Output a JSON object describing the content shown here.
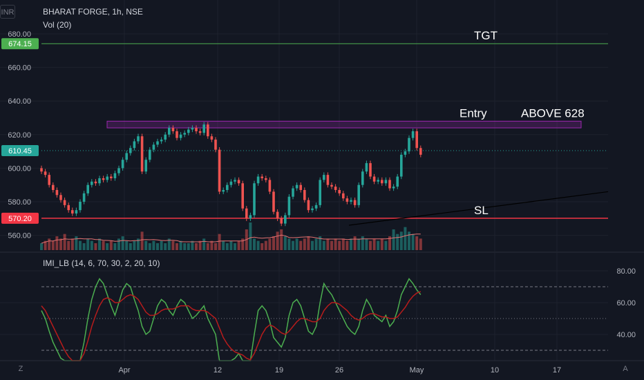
{
  "header": {
    "symbol_line": "BHARAT FORGE, 1h, NSE",
    "volume_label": "Vol (20)",
    "currency": "INR"
  },
  "indicator": {
    "label": "IMI_LB (14, 6, 70, 30, 2, 20, 10)"
  },
  "corners": {
    "left": "Z",
    "right": "A"
  },
  "colors": {
    "background": "#131722",
    "up": "#26a69a",
    "down": "#ef5350",
    "target_line": "#4caf50",
    "stop_line": "#f23645",
    "entry_zone": "#9c27b0",
    "trend_line": "#000000",
    "imi_fast": "#4caf50",
    "imi_slow": "#b71c1c"
  },
  "chart_data": [
    {
      "type": "line",
      "title": "BHARAT FORGE, 1h, NSE",
      "ylim": [
        551,
        684
      ],
      "y_ticks": [
        560,
        580,
        600,
        620,
        640,
        660,
        680
      ],
      "y_tick_labels": [
        "560.00",
        "580.00",
        "600.00",
        "620.00",
        "640.00",
        "660.00",
        "680.00"
      ],
      "x_tick_labels": [
        "Apr",
        "12",
        "19",
        "26",
        "May",
        "10",
        "17"
      ],
      "last_price": 610.45,
      "last_price_label": "610.45",
      "target_price": 674.15,
      "target_price_label": "674.15",
      "stop_price": 570.2,
      "stop_price_label": "570.20",
      "entry_zone": [
        624,
        628
      ],
      "annotations": [
        {
          "text": "TGT",
          "price": 674.15
        },
        {
          "text": "Entry",
          "price": 628
        },
        {
          "text": "ABOVE 628",
          "price": 628
        },
        {
          "text": "SL",
          "price": 570.2
        }
      ],
      "price_path": [
        598,
        596,
        590,
        587,
        584,
        581,
        578,
        575,
        573,
        575,
        580,
        585,
        590,
        592,
        591,
        594,
        593,
        595,
        594,
        597,
        600,
        605,
        609,
        612,
        616,
        619,
        598,
        605,
        611,
        614,
        616,
        617,
        620,
        624,
        622,
        618,
        620,
        621,
        623,
        624,
        622,
        621,
        626,
        619,
        617,
        611,
        586,
        587,
        590,
        592,
        593,
        591,
        576,
        570,
        572,
        591,
        595,
        594,
        593,
        586,
        574,
        570,
        567,
        572,
        583,
        588,
        590,
        587,
        581,
        575,
        576,
        578,
        593,
        596,
        590,
        589,
        587,
        585,
        582,
        580,
        581,
        578,
        590,
        598,
        603,
        595,
        592,
        593,
        591,
        593,
        588,
        589,
        595,
        608,
        610,
        618,
        622,
        612,
        608
      ]
    },
    {
      "type": "bar",
      "title": "Vol (20)",
      "values": [
        3,
        4,
        5,
        4,
        6,
        5,
        7,
        4,
        5,
        6,
        4,
        3,
        5,
        4,
        3,
        5,
        4,
        3,
        4,
        3,
        5,
        6,
        4,
        3,
        4,
        5,
        8,
        4,
        3,
        4,
        3,
        4,
        3,
        5,
        4,
        3,
        4,
        3,
        3,
        4,
        3,
        4,
        5,
        3,
        4,
        3,
        7,
        4,
        3,
        4,
        3,
        4,
        5,
        9,
        12,
        5,
        4,
        3,
        4,
        5,
        6,
        8,
        9,
        6,
        5,
        4,
        5,
        4,
        5,
        6,
        4,
        5,
        6,
        4,
        5,
        4,
        5,
        4,
        5,
        4,
        5,
        6,
        5,
        6,
        5,
        4,
        5,
        4,
        5,
        4,
        6,
        9,
        7,
        8,
        10,
        8,
        7,
        6,
        5
      ]
    },
    {
      "type": "line",
      "title": "IMI_LB (14, 6, 70, 30, 2, 20, 10)",
      "ylim": [
        25,
        85
      ],
      "y_ticks": [
        40,
        60,
        80
      ],
      "y_tick_labels": [
        "40.00",
        "60.00",
        "80.00"
      ],
      "levels": [
        30,
        50,
        70
      ],
      "series": [
        {
          "values": [
            55,
            50,
            42,
            35,
            30,
            25,
            20,
            18,
            15,
            12,
            20,
            35,
            50,
            62,
            70,
            75,
            72,
            65,
            58,
            52,
            60,
            68,
            72,
            70,
            62,
            55,
            45,
            40,
            42,
            50,
            58,
            62,
            60,
            55,
            52,
            58,
            62,
            60,
            55,
            50,
            52,
            55,
            58,
            50,
            45,
            40,
            20,
            18,
            20,
            22,
            25,
            28,
            20,
            15,
            18,
            40,
            55,
            58,
            55,
            48,
            38,
            35,
            32,
            38,
            52,
            60,
            62,
            58,
            50,
            42,
            40,
            45,
            60,
            72,
            68,
            65,
            60,
            55,
            50,
            45,
            42,
            40,
            45,
            55,
            62,
            58,
            52,
            50,
            48,
            52,
            45,
            48,
            55,
            65,
            70,
            75,
            72,
            68,
            65
          ]
        },
        {
          "values": [
            58,
            55,
            50,
            45,
            40,
            35,
            30,
            26,
            22,
            20,
            22,
            28,
            36,
            45,
            52,
            58,
            62,
            63,
            62,
            60,
            60,
            62,
            64,
            65,
            64,
            62,
            58,
            54,
            52,
            52,
            53,
            55,
            56,
            56,
            56,
            57,
            58,
            58,
            58,
            56,
            55,
            55,
            55,
            54,
            52,
            50,
            44,
            38,
            34,
            31,
            29,
            28,
            27,
            25,
            24,
            28,
            34,
            40,
            44,
            46,
            45,
            43,
            41,
            40,
            42,
            45,
            48,
            50,
            50,
            49,
            48,
            48,
            50,
            55,
            58,
            60,
            60,
            59,
            57,
            55,
            52,
            50,
            49,
            50,
            52,
            53,
            53,
            52,
            51,
            51,
            50,
            50,
            51,
            54,
            57,
            61,
            64,
            66,
            67
          ]
        }
      ]
    }
  ]
}
